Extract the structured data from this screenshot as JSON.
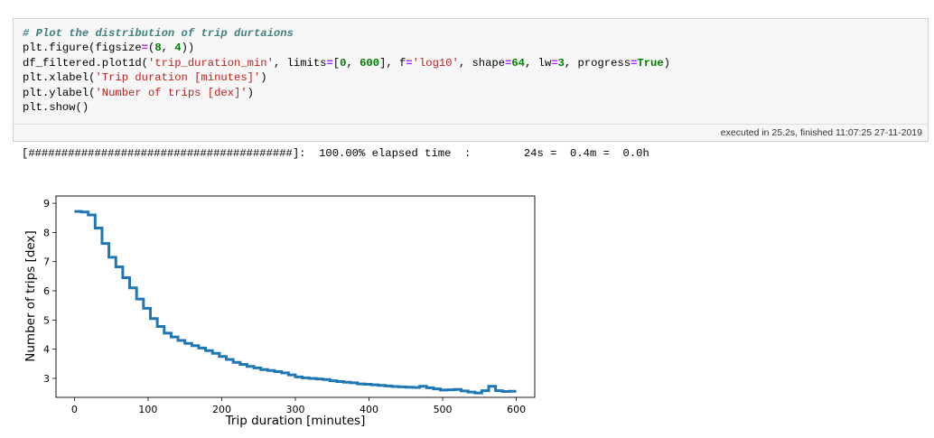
{
  "code_cell": {
    "lines": [
      [
        {
          "t": "# Plot the distribution of trip durtaions",
          "c": "comment"
        }
      ],
      [
        {
          "t": "plt.figure(figsize",
          "c": ""
        },
        {
          "t": "=",
          "c": "op"
        },
        {
          "t": "(",
          "c": ""
        },
        {
          "t": "8",
          "c": "num"
        },
        {
          "t": ", ",
          "c": ""
        },
        {
          "t": "4",
          "c": "num"
        },
        {
          "t": "))",
          "c": ""
        }
      ],
      [
        {
          "t": "df_filtered.plot1d(",
          "c": ""
        },
        {
          "t": "'trip_duration_min'",
          "c": "str"
        },
        {
          "t": ", limits",
          "c": ""
        },
        {
          "t": "=",
          "c": "op"
        },
        {
          "t": "[",
          "c": ""
        },
        {
          "t": "0",
          "c": "num"
        },
        {
          "t": ", ",
          "c": ""
        },
        {
          "t": "600",
          "c": "num"
        },
        {
          "t": "], f",
          "c": ""
        },
        {
          "t": "=",
          "c": "op"
        },
        {
          "t": "'log10'",
          "c": "str"
        },
        {
          "t": ", shape",
          "c": ""
        },
        {
          "t": "=",
          "c": "op"
        },
        {
          "t": "64",
          "c": "num"
        },
        {
          "t": ", lw",
          "c": ""
        },
        {
          "t": "=",
          "c": "op"
        },
        {
          "t": "3",
          "c": "num"
        },
        {
          "t": ", progress",
          "c": ""
        },
        {
          "t": "=",
          "c": "op"
        },
        {
          "t": "True",
          "c": "kw"
        },
        {
          "t": ")",
          "c": ""
        }
      ],
      [
        {
          "t": "plt.xlabel(",
          "c": ""
        },
        {
          "t": "'Trip duration [minutes]'",
          "c": "str"
        },
        {
          "t": ")",
          "c": ""
        }
      ],
      [
        {
          "t": "plt.ylabel(",
          "c": ""
        },
        {
          "t": "'Number of trips [dex]'",
          "c": "str"
        },
        {
          "t": ")",
          "c": ""
        }
      ],
      [
        {
          "t": "plt.show()",
          "c": ""
        }
      ]
    ],
    "execution_info": "executed in 25.2s, finished 11:07:25 27-11-2019"
  },
  "output": {
    "progress_line": "[########################################]:  100.00% elapsed time  :        24s =  0.4m =  0.0h"
  },
  "chart_data": {
    "type": "line",
    "step": true,
    "xlabel": "Trip duration [minutes]",
    "ylabel": "Number of trips [dex]",
    "xlim": [
      -25,
      625
    ],
    "ylim": [
      2.35,
      9.25
    ],
    "xticks": [
      0,
      100,
      200,
      300,
      400,
      500,
      600
    ],
    "yticks": [
      3,
      4,
      5,
      6,
      7,
      8,
      9
    ],
    "line_color": "#1f77b4",
    "bin_width": 9.375,
    "values": [
      8.72,
      8.7,
      8.6,
      8.15,
      7.62,
      7.15,
      6.82,
      6.45,
      6.1,
      5.72,
      5.4,
      5.05,
      4.78,
      4.55,
      4.42,
      4.3,
      4.2,
      4.12,
      4.04,
      3.95,
      3.86,
      3.75,
      3.65,
      3.55,
      3.48,
      3.41,
      3.36,
      3.3,
      3.27,
      3.23,
      3.19,
      3.12,
      3.05,
      3.02,
      3.0,
      2.98,
      2.96,
      2.92,
      2.89,
      2.87,
      2.85,
      2.81,
      2.8,
      2.78,
      2.76,
      2.74,
      2.72,
      2.71,
      2.7,
      2.69,
      2.73,
      2.68,
      2.64,
      2.6,
      2.61,
      2.62,
      2.57,
      2.53,
      2.5,
      2.58,
      2.73,
      2.58,
      2.55,
      2.56
    ]
  }
}
